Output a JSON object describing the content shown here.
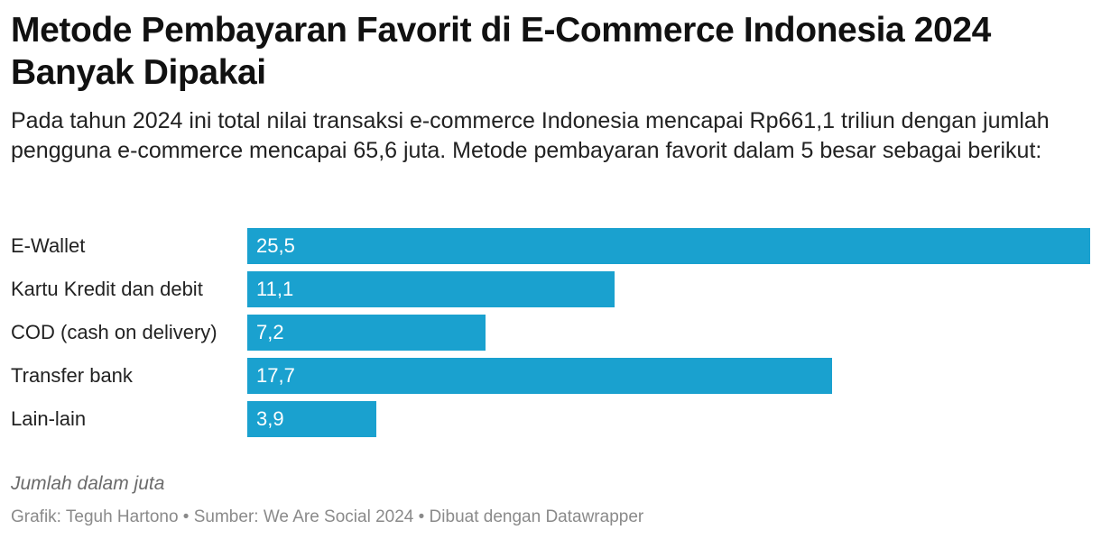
{
  "header": {
    "title": "Metode Pembayaran Favorit di E-Commerce Indonesia 2024 Banyak Dipakai",
    "subtitle": "Pada tahun 2024 ini total nilai transaksi e-commerce Indonesia mencapai Rp661,1 triliun dengan jumlah pengguna e-commerce mencapai 65,6 juta. Metode pembayaran favorit dalam 5 besar sebagai berikut:"
  },
  "chart_data": {
    "type": "bar",
    "orientation": "horizontal",
    "title": "Metode Pembayaran Favorit di E-Commerce Indonesia 2024 Banyak Dipakai",
    "categories": [
      "E-Wallet",
      "Kartu Kredit dan debit",
      "COD (cash on delivery)",
      "Transfer bank",
      "Lain-lain"
    ],
    "values": [
      25.5,
      11.1,
      7.2,
      17.7,
      3.9
    ],
    "value_labels": [
      "25,5",
      "11,1",
      "7,2",
      "17,7",
      "3,9"
    ],
    "xlim": [
      0,
      25.5
    ],
    "grid": false,
    "bar_color": "#1aa1cf"
  },
  "notes": "Jumlah dalam juta",
  "footer": "Grafik: Teguh Hartono • Sumber: We Are Social 2024 • Dibuat dengan Datawrapper"
}
